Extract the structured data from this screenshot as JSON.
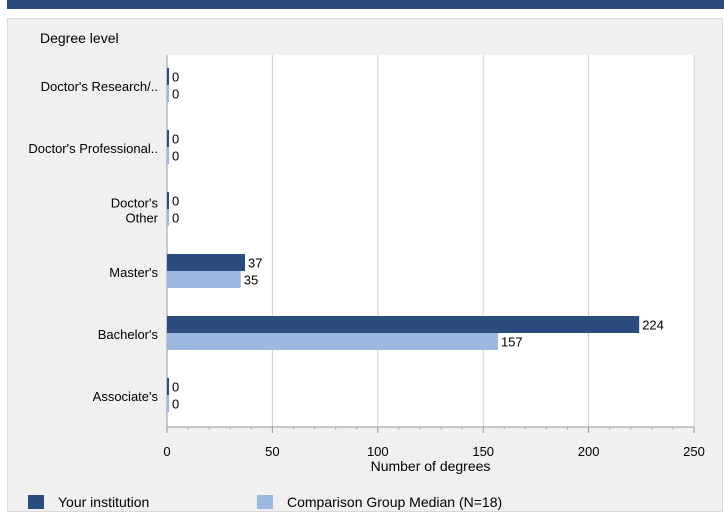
{
  "colors": {
    "series1": "#2b4c7e",
    "series2": "#9cb9e0",
    "grid": "#d0d0d0",
    "background": "#f0f0f0",
    "plot": "#ffffff"
  },
  "chart_data": {
    "type": "bar",
    "orientation": "horizontal",
    "title": "",
    "ylabel": "Degree level",
    "xlabel": "Number of degrees",
    "categories": [
      "Doctor's  Research/..",
      "Doctor's  Professional..",
      "Doctor's Other",
      "Master's",
      "Bachelor's",
      "Associate's"
    ],
    "category_lines": [
      [
        "Doctor's  Research/.."
      ],
      [
        "Doctor's  Professional.."
      ],
      [
        "Doctor's",
        "Other"
      ],
      [
        "Master's"
      ],
      [
        "Bachelor's"
      ],
      [
        "Associate's"
      ]
    ],
    "series": [
      {
        "name": "Your institution",
        "values": [
          0,
          0,
          0,
          37,
          224,
          0
        ]
      },
      {
        "name": "Comparison Group Median (N=18)",
        "values": [
          0,
          0,
          0,
          35,
          157,
          0
        ]
      }
    ],
    "xlim": [
      0,
      250
    ],
    "xticks": [
      0,
      50,
      100,
      150,
      200,
      250
    ],
    "grid": true,
    "legend_position": "bottom"
  }
}
